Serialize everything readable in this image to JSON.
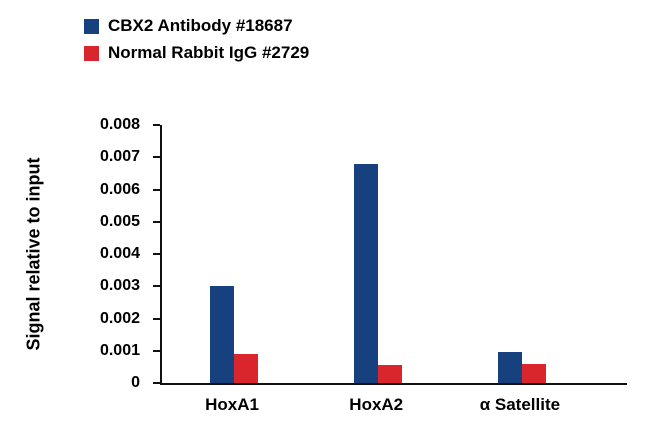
{
  "legend": {
    "items": [
      {
        "label": "CBX2 Antibody #18687",
        "color": "#16407e"
      },
      {
        "label": "Normal Rabbit IgG #2729",
        "color": "#d8262c"
      }
    ]
  },
  "chart_data": {
    "type": "bar",
    "title": "",
    "categories": [
      "HoxA1",
      "HoxA2",
      "α Satellite"
    ],
    "series": [
      {
        "name": "CBX2 Antibody #18687",
        "color": "#16407e",
        "values": [
          0.003,
          0.0068,
          0.00097
        ]
      },
      {
        "name": "Normal Rabbit IgG #2729",
        "color": "#d8262c",
        "values": [
          0.0009,
          0.00055,
          0.0006
        ]
      }
    ],
    "xlabel": "",
    "ylabel": "Signal relative to input",
    "ylim": [
      0,
      0.008
    ],
    "ytick_step": 0.001,
    "grid": false,
    "legend_position": "top-left",
    "group_centers_pct": [
      15.5,
      46.5,
      77.4
    ]
  }
}
